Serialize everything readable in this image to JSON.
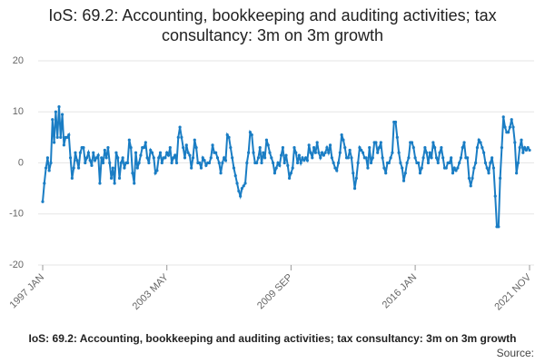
{
  "chart_data": {
    "type": "line",
    "title": "IoS: 69.2: Accounting, bookkeeping and auditing activities; tax consultancy: 3m on 3m growth",
    "footer_title": "IoS: 69.2: Accounting, bookkeeping and auditing activities; tax consultancy: 3m on 3m growth",
    "source": "Source:",
    "categories": [
      "1997 JAN",
      null,
      null,
      null,
      null,
      null,
      null,
      null,
      null,
      null,
      null,
      null,
      null,
      null,
      null,
      null,
      null,
      null,
      null,
      null,
      null,
      null,
      null,
      null,
      null,
      null,
      null,
      null,
      null,
      null,
      null,
      null,
      null,
      null,
      null,
      null,
      null,
      null,
      null,
      null,
      null,
      null,
      null,
      null,
      null,
      null,
      null,
      null,
      null,
      null,
      null,
      null,
      null,
      null,
      null,
      null,
      null,
      null,
      null,
      null,
      null,
      null,
      null,
      null,
      null,
      null,
      null,
      null,
      null,
      null,
      null,
      null,
      null,
      null,
      null,
      null,
      "2003 MAY",
      null,
      null,
      null,
      null,
      null,
      null,
      null,
      null,
      null,
      null,
      null,
      null,
      null,
      null,
      null,
      null,
      null,
      null,
      null,
      null,
      null,
      null,
      null,
      null,
      null,
      null,
      null,
      null,
      null,
      null,
      null,
      null,
      null,
      null,
      null,
      null,
      null,
      null,
      null,
      null,
      null,
      null,
      null,
      null,
      null,
      null,
      null,
      null,
      null,
      null,
      null,
      null,
      null,
      null,
      null,
      null,
      null,
      null,
      null,
      null,
      null,
      null,
      null,
      null,
      null,
      null,
      null,
      null,
      null,
      null,
      null,
      null,
      null,
      null,
      null,
      "2009 SEP",
      null,
      null,
      null,
      null,
      null,
      null,
      null,
      null,
      null,
      null,
      null,
      null,
      null,
      null,
      null,
      null,
      null,
      null,
      null,
      null,
      null,
      null,
      null,
      null,
      null,
      null,
      null,
      null,
      null,
      null,
      null,
      null,
      null,
      null,
      null,
      null,
      null,
      null,
      null,
      null,
      null,
      null,
      null,
      null,
      null,
      null,
      null,
      null,
      null,
      null,
      null,
      null,
      null,
      null,
      null,
      null,
      null,
      null,
      null,
      null,
      null,
      null,
      null,
      null,
      null,
      null,
      null,
      null,
      null,
      null,
      null,
      null,
      null,
      null,
      null,
      "2016 JAN",
      null,
      null,
      null,
      null,
      null,
      null,
      null,
      null,
      null,
      null,
      null,
      null,
      null,
      null,
      null,
      null,
      null,
      null,
      null,
      null,
      null,
      null,
      null,
      null,
      null,
      null,
      null,
      null,
      null,
      null,
      null,
      null,
      null,
      null,
      null,
      null,
      null,
      null,
      null,
      null,
      null,
      null,
      null,
      null,
      null,
      null,
      null,
      null,
      null,
      null,
      null,
      null,
      null,
      null,
      null,
      null,
      null,
      null,
      null,
      null,
      null,
      null,
      null,
      null,
      null,
      null,
      null,
      null,
      null,
      "2021 NOV"
    ],
    "series": [
      {
        "name": "3m on 3m growth",
        "color": "#1a7dc4",
        "values": [
          -7.6,
          -4,
          -1,
          1,
          -1.5,
          0,
          8.5,
          4,
          10,
          5,
          11,
          5,
          9.5,
          3.5,
          5,
          5,
          5.5,
          1,
          -3,
          -1,
          2,
          0.5,
          -1,
          2,
          3,
          3,
          0,
          1,
          2,
          0.5,
          -0.5,
          2,
          0.5,
          1,
          1.5,
          -4,
          1,
          0,
          2.5,
          1,
          3,
          0,
          -3,
          -1,
          -4,
          2,
          1,
          -3,
          0,
          1,
          -1,
          0,
          0,
          4.5,
          3,
          -2,
          -4,
          2,
          -1,
          0,
          1.5,
          3,
          3,
          4,
          1,
          0,
          2.5,
          2,
          1,
          -2,
          -1.5,
          1,
          2,
          0,
          1,
          1,
          2,
          1.5,
          3,
          0,
          1,
          1.5,
          0,
          5,
          7,
          5,
          3,
          1,
          3.5,
          2,
          1.5,
          -1,
          1,
          4.5,
          3,
          0,
          0,
          -1,
          1,
          0.5,
          -0.5,
          0,
          0,
          1,
          3.5,
          2,
          2,
          1,
          0,
          -2,
          0,
          1,
          0.5,
          5.5,
          5,
          3,
          1,
          -1,
          -2.5,
          -4,
          -5.5,
          -6.5,
          -5,
          -4.5,
          -4,
          0,
          2,
          6,
          5.5,
          2,
          0,
          0,
          1,
          3,
          0,
          2,
          1,
          4.5,
          3.5,
          2,
          1,
          0,
          -2,
          -1,
          0,
          -0.5,
          1.5,
          3,
          0,
          1.5,
          -0.5,
          -3,
          -2,
          -1,
          3,
          2,
          0,
          1.5,
          0,
          1,
          0.5,
          1,
          0.5,
          3.5,
          2,
          1,
          3,
          2,
          4,
          2,
          1,
          2,
          1.5,
          2,
          3,
          2,
          3.5,
          1,
          0,
          -1,
          -1.5,
          0,
          2,
          5.5,
          4.5,
          3,
          1,
          1,
          2.5,
          1,
          -2,
          -5,
          -3,
          0,
          3,
          2.5,
          2,
          1,
          1,
          -1,
          3,
          0,
          1,
          4,
          4,
          2,
          3,
          4,
          1,
          -1,
          -2,
          0,
          0,
          1,
          2,
          8,
          8,
          5,
          2,
          0,
          -1,
          -3.5,
          -2,
          0,
          1,
          4,
          4,
          3,
          1,
          0,
          0,
          -2,
          -1,
          1,
          3,
          2,
          0,
          2,
          1,
          4,
          3,
          1,
          0,
          2,
          3,
          1,
          -1,
          -1,
          0,
          0,
          1,
          -2,
          -1,
          -1.5,
          -1,
          0,
          1,
          3,
          4,
          1,
          1,
          -3,
          -4.5,
          -3,
          -1,
          0,
          3,
          4.5,
          4,
          3,
          2,
          0,
          -1,
          -2,
          0,
          1,
          -1,
          -6.5,
          -12.5,
          -12.5,
          -3,
          3,
          9,
          7,
          6,
          6,
          7,
          8.5,
          7,
          4,
          -2,
          0,
          3,
          4.5,
          2,
          3,
          2.5,
          3,
          2.5
        ]
      }
    ],
    "ylim": [
      -20,
      20
    ],
    "yticks": [
      -20,
      -10,
      0,
      10,
      20
    ],
    "grid": true
  }
}
